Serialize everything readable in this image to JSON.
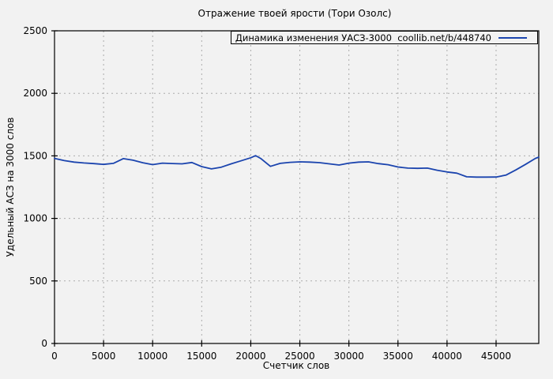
{
  "title": "Отражение твоей ярости (Тори Озолс)",
  "legend": {
    "label": "Динамика изменения УАСЗ-3000  coollib.net/b/448740"
  },
  "colors": {
    "background": "#f2f2f2",
    "border": "#000000",
    "grid": "#ababab",
    "text": "#000000",
    "line": "#1b44ae"
  },
  "chart_data": {
    "type": "line",
    "title": "Отражение твоей ярости (Тори Озолс)",
    "xlabel": "Счетчик слов",
    "ylabel": "Удельный АСЗ на 3000 слов",
    "legend_entries": [
      "Динамика изменения УАСЗ-3000  coollib.net/b/448740"
    ],
    "legend_position": "top-right inside plot, boxed",
    "grid": true,
    "xlim": [
      0,
      49350
    ],
    "ylim": [
      0,
      2500
    ],
    "x_ticks": [
      0,
      5000,
      10000,
      15000,
      20000,
      25000,
      30000,
      35000,
      40000,
      45000
    ],
    "y_ticks": [
      0,
      500,
      1000,
      1500,
      2000,
      2500
    ],
    "series": [
      {
        "name": "Динамика изменения УАСЗ-3000  coollib.net/b/448740",
        "color": "#1b44ae",
        "x": [
          0,
          1000,
          2000,
          3000,
          4000,
          5000,
          6000,
          7000,
          8000,
          9000,
          10000,
          11000,
          12000,
          13000,
          14000,
          15000,
          16000,
          17000,
          18000,
          19000,
          20000,
          20500,
          21000,
          22000,
          23000,
          24000,
          25000,
          26000,
          27000,
          28000,
          29000,
          30000,
          31000,
          32000,
          33000,
          34000,
          35000,
          36000,
          37000,
          38000,
          39000,
          40000,
          41000,
          42000,
          43000,
          44000,
          45000,
          46000,
          47000,
          48000,
          49000,
          49350
        ],
        "y": [
          1480,
          1462,
          1450,
          1443,
          1438,
          1432,
          1440,
          1478,
          1465,
          1445,
          1430,
          1442,
          1439,
          1436,
          1447,
          1414,
          1396,
          1410,
          1436,
          1460,
          1485,
          1502,
          1480,
          1416,
          1440,
          1448,
          1452,
          1450,
          1446,
          1436,
          1427,
          1442,
          1450,
          1452,
          1438,
          1429,
          1411,
          1402,
          1400,
          1402,
          1385,
          1371,
          1362,
          1333,
          1330,
          1330,
          1331,
          1346,
          1387,
          1432,
          1480,
          1490
        ]
      }
    ]
  }
}
